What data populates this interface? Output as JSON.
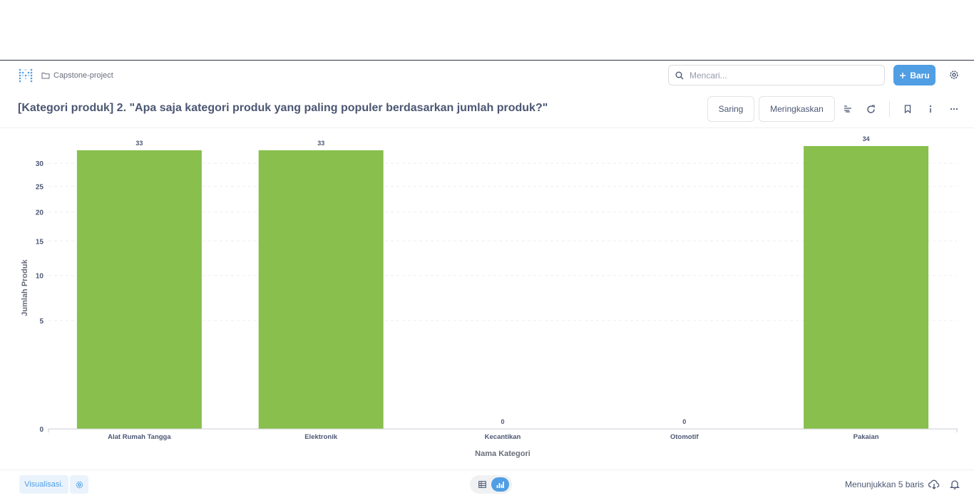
{
  "navbar": {
    "breadcrumb": "Capstone-project",
    "search_placeholder": "Mencari...",
    "new_button": "Baru",
    "icons": [
      "metabase-logo-icon",
      "folder-icon",
      "search-icon",
      "plus-icon",
      "gear-icon"
    ]
  },
  "header": {
    "title": "[Kategori produk] 2. \"Apa saja kategori produk yang paling populer berdasarkan jumlah produk?\"",
    "filter_button": "Saring",
    "summarize_button": "Meringkaskan",
    "icons": [
      "notebook-icon",
      "refresh-icon",
      "bookmark-icon",
      "info-icon",
      "more-icon"
    ]
  },
  "chart_data": {
    "type": "bar",
    "categories": [
      "Alat Rumah Tangga",
      "Elektronik",
      "Kecantikan",
      "Otomotif",
      "Pakaian"
    ],
    "values": [
      33,
      33,
      0,
      0,
      34
    ],
    "data_labels": [
      "33",
      "33",
      "0",
      "0",
      "34"
    ],
    "xlabel": "Nama Kategori",
    "ylabel": "Jumlah Produk",
    "y_ticks": [
      0,
      5,
      10,
      15,
      20,
      25,
      30
    ],
    "y_scale": "pow-0.5",
    "ylim": [
      0,
      34
    ],
    "grid": true,
    "bar_color": "#88bf4d"
  },
  "footer": {
    "visualization_button": "Visualisasi.",
    "rows_text": "Menunjukkan 5 baris",
    "icons": [
      "gear-icon",
      "table-icon",
      "bar-chart-icon",
      "download-icon",
      "bell-icon"
    ]
  },
  "colors": {
    "accent": "#509ee3",
    "text": "#4c5773",
    "bar": "#88bf4d"
  }
}
